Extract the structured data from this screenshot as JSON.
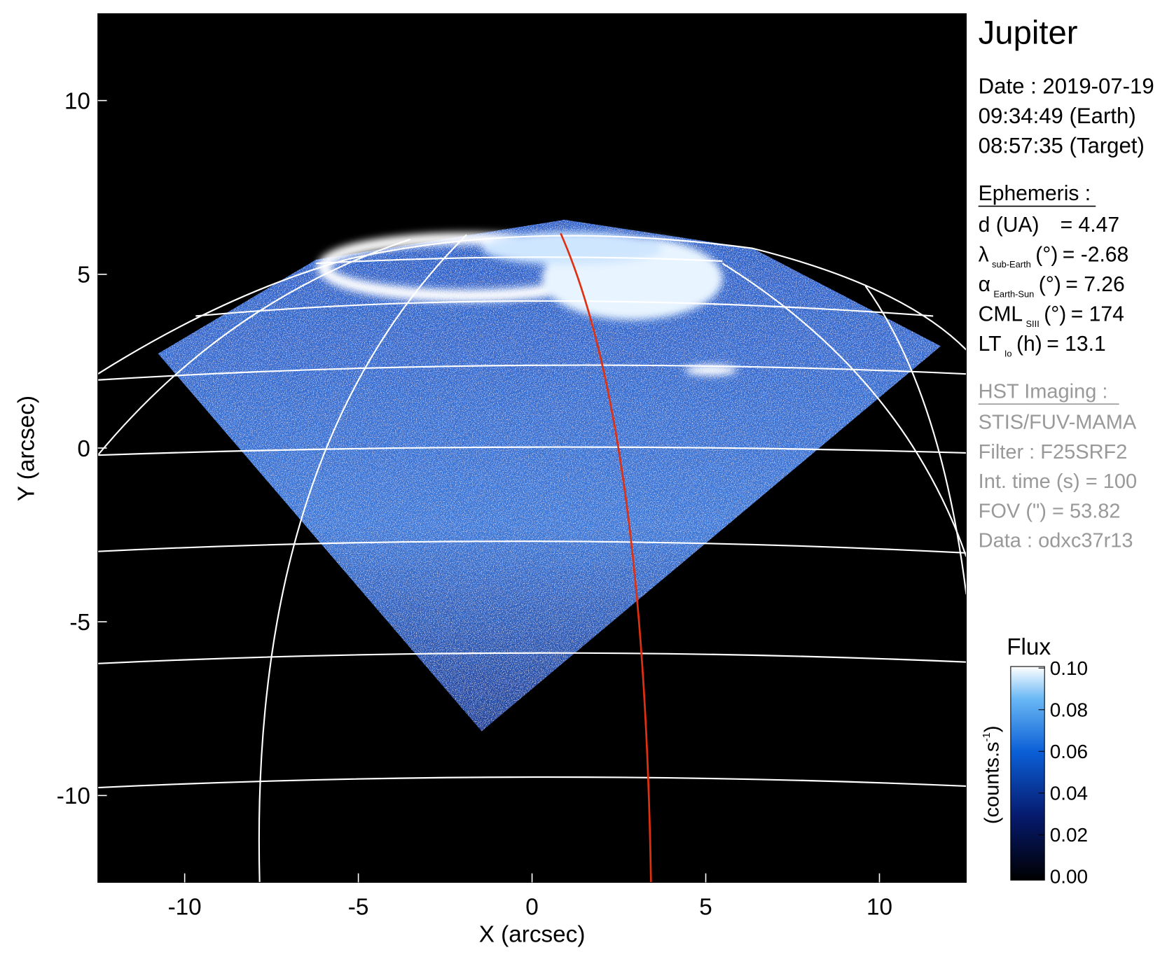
{
  "chart_data": {
    "type": "image",
    "xlabel": "X (arcsec)",
    "ylabel": "Y (arcsec)",
    "xlim": [
      -12.5,
      12.5
    ],
    "ylim": [
      -12.5,
      12.5
    ],
    "xticks": [
      -10,
      -5,
      0,
      5,
      10
    ],
    "yticks": [
      -10,
      -5,
      0,
      5,
      10
    ],
    "colorbar": {
      "title": "Flux",
      "label": "(counts.s",
      "label_sup": "-1",
      "label_end": ")",
      "clim": [
        0,
        0.1
      ],
      "ticks": [
        {
          "value": 0,
          "label": "0.00"
        },
        {
          "value": 0.02,
          "label": "0.02"
        },
        {
          "value": 0.04,
          "label": "0.04"
        },
        {
          "value": 0.06,
          "label": "0.06"
        },
        {
          "value": 0.08,
          "label": "0.08"
        },
        {
          "value": 0.1,
          "label": "0.10"
        }
      ]
    },
    "info": {
      "title": "Jupiter",
      "date": [
        "Date : 2019-07-19",
        "09:34:49 (Earth)",
        "08:57:35 (Target)"
      ],
      "ephemeris_title": "Ephemeris :",
      "ephemeris": [
        {
          "label": "d (UA)",
          "value": "= 4.47"
        },
        {
          "label": "λ",
          "sub": "sub-Earth",
          "unit": "(°)",
          "value": "= -2.68"
        },
        {
          "label": "α",
          "sub": "Earth-Sun",
          "unit": "(°)",
          "value": "= 7.26"
        },
        {
          "label": "CML",
          "sub": "SIII",
          "unit": "(°)",
          "value": "= 174"
        },
        {
          "label": "LT",
          "sub": "Io",
          "unit": "(h)",
          "value": "= 13.1"
        }
      ],
      "imaging_title": "HST Imaging :",
      "imaging": [
        "STIS/FUV-MAMA",
        "Filter : F25SRF2",
        "Int. time (s) = 100",
        "FOV (\") = 53.82",
        "Data : odxc37r13"
      ]
    }
  }
}
